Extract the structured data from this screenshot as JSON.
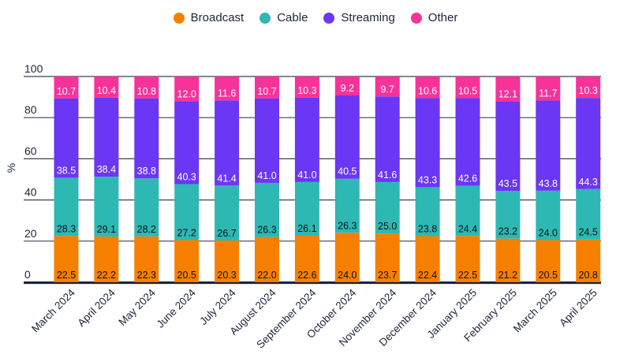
{
  "chart_data": {
    "type": "bar",
    "stacked": true,
    "title": "",
    "xlabel": "",
    "ylabel": "%",
    "ylim": [
      0,
      100
    ],
    "yticks": [
      0,
      20,
      40,
      60,
      80,
      100
    ],
    "grid": true,
    "legend_position": "top-center",
    "categories": [
      "March 2024",
      "April 2024",
      "May 2024",
      "June 2024",
      "July 2024",
      "August 2024",
      "September 2024",
      "October 2024",
      "November 2024",
      "December 2024",
      "January 2025",
      "February 2025",
      "March 2025",
      "April 2025"
    ],
    "series": [
      {
        "name": "Broadcast",
        "color": "#f77f00",
        "label_color": "#111111",
        "values": [
          22.5,
          22.2,
          22.3,
          20.5,
          20.3,
          22.0,
          22.6,
          24.0,
          23.7,
          22.4,
          22.5,
          21.2,
          20.5,
          20.8
        ]
      },
      {
        "name": "Cable",
        "color": "#2eb8b4",
        "label_color": "#111111",
        "values": [
          28.3,
          29.1,
          28.2,
          27.2,
          26.7,
          26.3,
          26.1,
          26.3,
          25.0,
          23.8,
          24.4,
          23.2,
          24.0,
          24.5
        ]
      },
      {
        "name": "Streaming",
        "color": "#6b36f4",
        "label_color": "#ffffff",
        "values": [
          38.5,
          38.4,
          38.8,
          40.3,
          41.4,
          41.0,
          41.0,
          40.5,
          41.6,
          43.3,
          42.6,
          43.5,
          43.8,
          44.3
        ]
      },
      {
        "name": "Other",
        "color": "#f7339a",
        "label_color": "#ffffff",
        "values": [
          10.7,
          10.4,
          10.8,
          12.0,
          11.6,
          10.7,
          10.3,
          9.2,
          9.7,
          10.6,
          10.5,
          12.1,
          11.7,
          10.3
        ]
      }
    ]
  }
}
